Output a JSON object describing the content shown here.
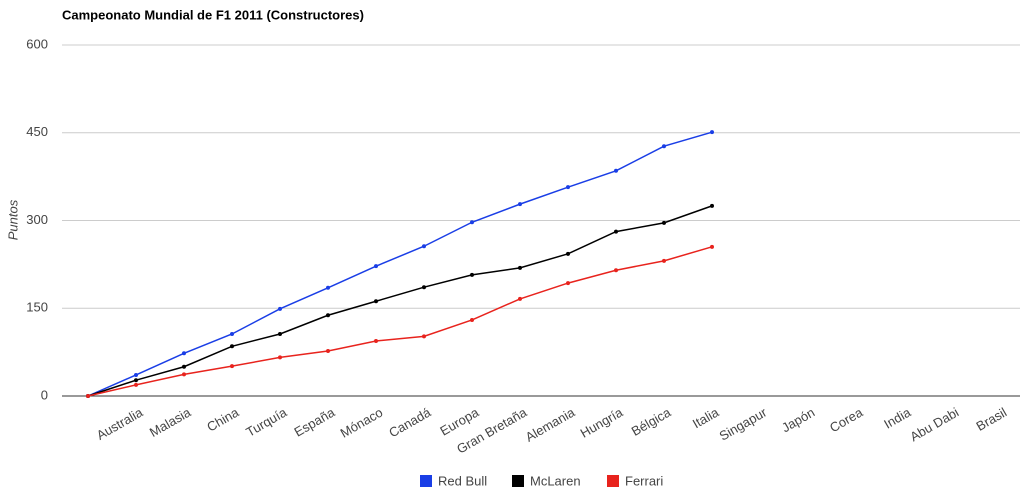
{
  "chart_data": {
    "type": "line",
    "title": "Campeonato Mundial de F1 2011 (Constructores)",
    "ylabel": "Puntos",
    "categories": [
      null,
      "Australia",
      "Malasia",
      "China",
      "Turquía",
      "España",
      "Mónaco",
      "Canadá",
      "Europa",
      "Gran Bretaña",
      "Alemania",
      "Hungría",
      "Bélgica",
      "Italia",
      "Singapur",
      "Japón",
      "Corea",
      "India",
      "Abu Dabi",
      "Brasil"
    ],
    "series": [
      {
        "name": "Red Bull",
        "color": "#1a3ee6",
        "values": [
          0,
          36,
          73,
          106,
          149,
          185,
          222,
          256,
          297,
          328,
          357,
          385,
          427,
          451,
          null,
          null,
          null,
          null,
          null,
          null
        ]
      },
      {
        "name": "McLaren",
        "color": "#000000",
        "values": [
          0,
          27,
          50,
          85,
          106,
          138,
          162,
          186,
          207,
          219,
          243,
          281,
          296,
          325,
          null,
          null,
          null,
          null,
          null,
          null
        ]
      },
      {
        "name": "Ferrari",
        "color": "#e8231d",
        "values": [
          0,
          19,
          37,
          51,
          66,
          77,
          94,
          102,
          130,
          166,
          193,
          215,
          231,
          255,
          null,
          null,
          null,
          null,
          null,
          null
        ]
      }
    ],
    "ylim": [
      0,
      600
    ],
    "yticks": [
      0,
      150,
      300,
      450,
      600
    ],
    "grid": true,
    "legend": "bottom"
  }
}
